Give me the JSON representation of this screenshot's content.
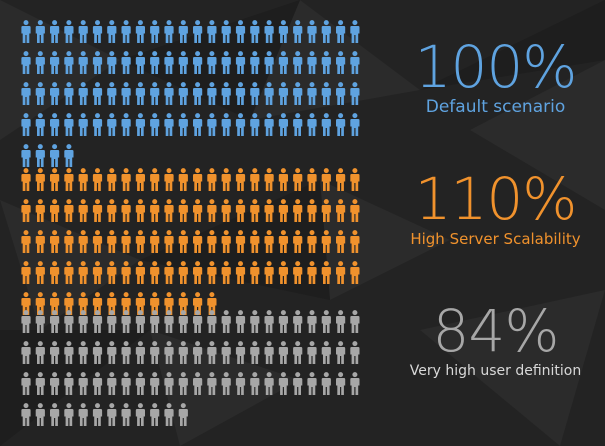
{
  "colors": {
    "background": "#232323",
    "blue": "#5fa3e0",
    "orange": "#f0922d",
    "gray": "#a7a7a7"
  },
  "chart_data": {
    "type": "pictograph",
    "icon": "person-icon",
    "series": [
      {
        "name": "Default scenario",
        "value_text": "100%",
        "value": 100,
        "icons": 100,
        "color": "#5fa3e0"
      },
      {
        "name": "High Server Scalability",
        "value_text": "110%",
        "value": 110,
        "icons": 110,
        "color": "#f0922d"
      },
      {
        "name": "Very high user definition",
        "value_text": "84%",
        "value": 84,
        "icons": 84,
        "color": "#a7a7a7"
      }
    ]
  }
}
